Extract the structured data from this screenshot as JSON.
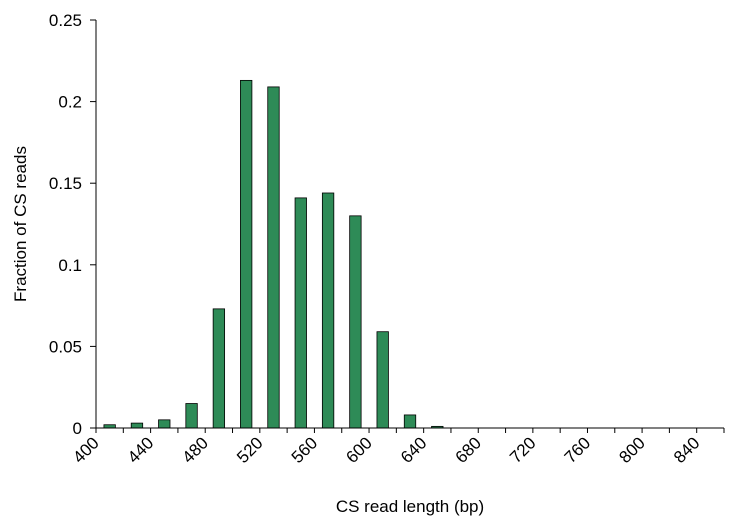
{
  "chart_data": {
    "type": "bar",
    "title": "",
    "xlabel": "CS read length (bp)",
    "ylabel": "Fraction of CS reads",
    "x_tick_labels": [
      "400",
      "440",
      "480",
      "520",
      "560",
      "600",
      "640",
      "680",
      "720",
      "760",
      "800",
      "840"
    ],
    "x_tick_values": [
      400,
      440,
      480,
      520,
      560,
      600,
      640,
      680,
      720,
      760,
      800,
      840
    ],
    "y_tick_labels": [
      "0",
      "0.05",
      "0.1",
      "0.15",
      "0.2",
      "0.25"
    ],
    "y_tick_values": [
      0,
      0.05,
      0.1,
      0.15,
      0.2,
      0.25
    ],
    "xlim": [
      400,
      860
    ],
    "ylim": [
      0,
      0.25
    ],
    "categories": [
      "400-420",
      "420-440",
      "440-460",
      "460-480",
      "480-500",
      "500-520",
      "520-540",
      "540-560",
      "560-580",
      "580-600",
      "600-620",
      "620-640",
      "640-660",
      "660-680",
      "680-700",
      "700-720",
      "720-740",
      "740-760",
      "760-780",
      "780-800",
      "800-820",
      "820-840",
      "840-860"
    ],
    "values": [
      0.002,
      0.003,
      0.005,
      0.015,
      0.073,
      0.213,
      0.209,
      0.141,
      0.144,
      0.13,
      0.059,
      0.008,
      0.001,
      0,
      0,
      0,
      0,
      0,
      0,
      0,
      0,
      0,
      0
    ],
    "bar_color": "#2e8b57",
    "grid": false,
    "legend": "none"
  }
}
